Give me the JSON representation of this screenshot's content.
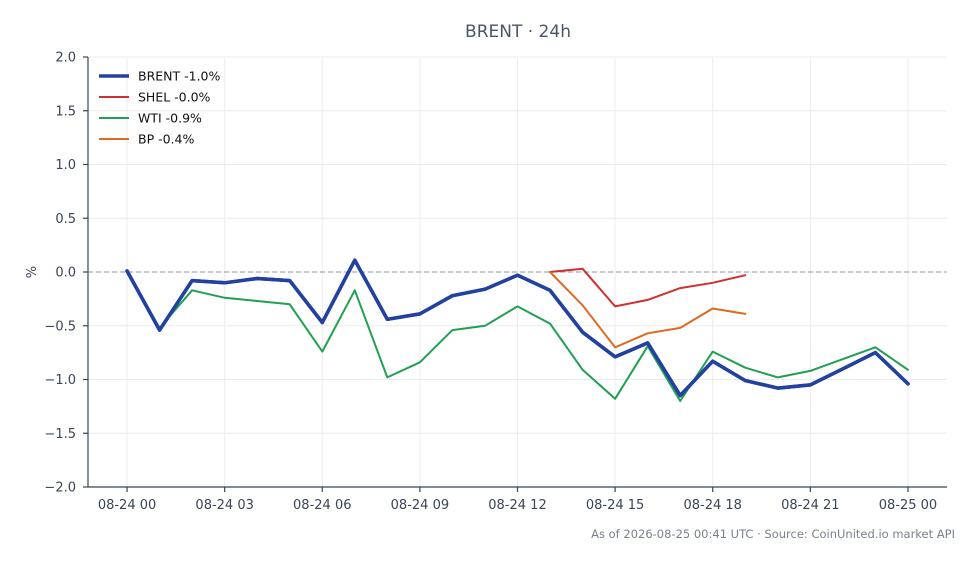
{
  "chart_data": {
    "type": "line",
    "title": "BRENT · 24h",
    "ylabel": "%",
    "xlabel": "",
    "ylim": [
      -2.0,
      2.0
    ],
    "yticks": [
      2.0,
      1.5,
      1.0,
      0.5,
      0.0,
      -0.5,
      -1.0,
      -1.5,
      -2.0
    ],
    "ytick_labels": [
      "2.0",
      "1.5",
      "1.0",
      "0.5",
      "0.0",
      "−0.5",
      "−1.0",
      "−1.5",
      "−2.0"
    ],
    "xlim_hours": [
      -1.2,
      25.2
    ],
    "xticks_hours": [
      0,
      3,
      6,
      9,
      12,
      15,
      18,
      21,
      24
    ],
    "xtick_labels": [
      "08-24 00",
      "08-24 03",
      "08-24 06",
      "08-24 09",
      "08-24 12",
      "08-24 15",
      "08-24 18",
      "08-24 21",
      "08-25 00"
    ],
    "grid": true,
    "zero_line": true,
    "legend_position": "top-left",
    "series": [
      {
        "name": "BRENT -1.0%",
        "color": "#2341a0",
        "width": 3.5,
        "x": [
          0,
          1,
          2,
          3,
          4,
          5,
          6,
          7,
          8,
          9,
          10,
          11,
          12,
          13,
          14,
          15,
          16,
          17,
          18,
          19,
          20,
          21,
          22,
          23,
          24
        ],
        "y": [
          0.01,
          -0.54,
          -0.08,
          -0.1,
          -0.06,
          -0.08,
          -0.47,
          0.11,
          -0.44,
          -0.39,
          -0.22,
          -0.16,
          -0.03,
          -0.17,
          -0.56,
          -0.79,
          -0.66,
          -1.15,
          -0.83,
          -1.01,
          -1.08,
          -1.05,
          -0.9,
          -0.75,
          -1.04
        ]
      },
      {
        "name": "SHEL -0.0%",
        "color": "#d03030",
        "width": 2,
        "x": [
          13,
          14,
          15,
          16,
          17,
          18,
          19
        ],
        "y": [
          0.0,
          0.03,
          -0.32,
          -0.26,
          -0.15,
          -0.1,
          -0.03
        ]
      },
      {
        "name": "WTI -0.9%",
        "color": "#20a050",
        "width": 2,
        "x": [
          0,
          1,
          2,
          3,
          4,
          5,
          6,
          7,
          8,
          9,
          10,
          11,
          12,
          13,
          14,
          15,
          16,
          17,
          18,
          19,
          20,
          21,
          22,
          23,
          24
        ],
        "y": [
          0.0,
          -0.52,
          -0.17,
          -0.24,
          -0.27,
          -0.3,
          -0.74,
          -0.17,
          -0.98,
          -0.84,
          -0.54,
          -0.5,
          -0.32,
          -0.48,
          -0.91,
          -1.18,
          -0.69,
          -1.2,
          -0.74,
          -0.89,
          -0.98,
          -0.92,
          -0.81,
          -0.7,
          -0.91
        ]
      },
      {
        "name": "BP -0.4%",
        "color": "#e06820",
        "width": 2,
        "x": [
          13,
          14,
          15,
          16,
          17,
          18,
          19
        ],
        "y": [
          0.0,
          -0.31,
          -0.7,
          -0.57,
          -0.52,
          -0.34,
          -0.39
        ]
      }
    ]
  },
  "footer": {
    "note": "As of 2026-08-25 00:41 UTC · Source: CoinUnited.io market API"
  }
}
